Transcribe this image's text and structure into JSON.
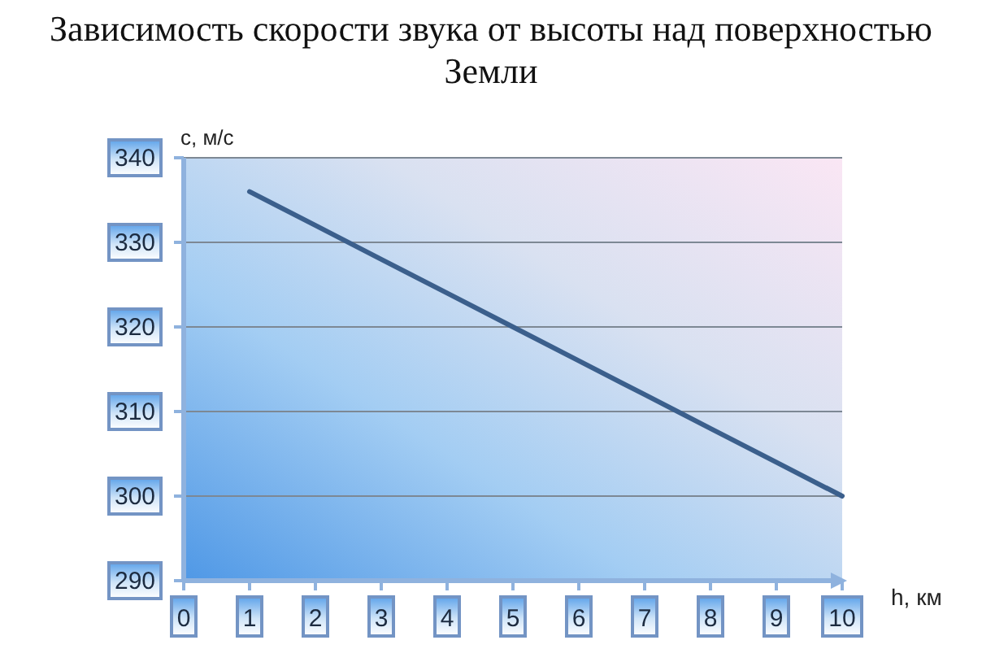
{
  "chart_data": {
    "type": "line",
    "title": "Зависимость скорости звука от высоты над поверхностью Земли",
    "xlabel": "h, км",
    "ylabel": "с, м/с",
    "x": [
      1,
      2,
      3,
      4,
      5,
      6,
      7,
      8,
      9,
      10
    ],
    "series": [
      {
        "color": "#3b5f8c",
        "values": [
          336,
          332,
          328,
          324,
          320,
          316,
          312,
          308,
          304,
          300
        ]
      }
    ],
    "xlim": [
      0,
      10
    ],
    "xticks": [
      0,
      1,
      2,
      3,
      4,
      5,
      6,
      7,
      8,
      9,
      10
    ],
    "ylim": [
      290,
      340
    ],
    "yticks": [
      290,
      300,
      310,
      320,
      330,
      340
    ],
    "grid": "y"
  }
}
